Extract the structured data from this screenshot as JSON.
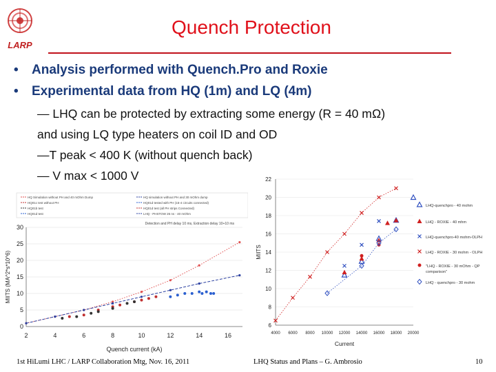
{
  "header": {
    "title": "Quench Protection",
    "logo_text": "LARP"
  },
  "bullets": [
    "Analysis performed with Quench.Pro and Roxie",
    "Experimental data from HQ (1m) and LQ (4m)"
  ],
  "sub_points": [
    "— LHQ can be protected by extracting some energy (R = 40 mΩ)",
    "and using LQ type heaters on coil ID and OD",
    "—T peak < 400 K (without quench back)",
    "— V max < 1000 V"
  ],
  "footer": {
    "left": "1st HiLumi LHC / LARP Collaboration Mtg, Nov. 16, 2011",
    "center": "LHQ Status and Plans – G. Ambrosio",
    "page": "10"
  },
  "chart_data": [
    {
      "type": "scatter",
      "xlabel": "Quench current (kA)",
      "ylabel": "MIITS (MA^2*s*10^6)",
      "xlim": [
        2,
        17
      ],
      "ylim": [
        0,
        30
      ],
      "xticks": [
        "2",
        "4",
        "6",
        "8",
        "10",
        "12",
        "14",
        "16"
      ],
      "yticks": [
        "0",
        "5",
        "10",
        "15",
        "20",
        "25",
        "30"
      ],
      "annotation": "Detection and PH delay 10 ms, Extraction delay 10+10 ms",
      "legend": [
        "HQ Simulation without PH and 40 mOhm Dump",
        "HQ01c test without PH",
        "HQ01b test",
        "HQ01d test",
        "HQ simulation without PH and 30 mOhm dump",
        "HQ01d tested with PH (15-4 circuits connected)",
        "HQ01d test (all PH strips Connected)",
        "LHQ - PHSTOW 26 ns - 40 mOhm"
      ],
      "series": [
        {
          "name": "HQ Simulation without PH and 40 mOhm Dump",
          "style": "dotted-line",
          "color": "#e05050",
          "x": [
            2,
            4,
            6,
            8,
            10,
            12,
            14,
            16.8
          ],
          "y": [
            1,
            3,
            5,
            7.5,
            10.5,
            14,
            18.5,
            25.5
          ]
        },
        {
          "name": "HQ simulation without PH and 30 mOhm dump",
          "style": "dashed-line",
          "color": "#2a3fa0",
          "x": [
            2,
            4,
            6,
            8,
            10,
            12,
            14,
            16.8
          ],
          "y": [
            1,
            3,
            5,
            7,
            9,
            11,
            13,
            15.5
          ]
        },
        {
          "name": "HQ01c test without PH",
          "style": "points",
          "color": "#c03030",
          "x": [
            5,
            6,
            7,
            8,
            8.5,
            9.5,
            10,
            10.5,
            11
          ],
          "y": [
            3,
            3.5,
            5,
            6,
            6.5,
            7.5,
            8,
            8.5,
            9
          ]
        },
        {
          "name": "HQ01b test",
          "style": "points",
          "color": "#333333",
          "x": [
            4.5,
            5.5,
            6.5,
            7,
            8,
            9,
            9.5
          ],
          "y": [
            2.5,
            3,
            4,
            4.5,
            5.5,
            7,
            7.5
          ]
        },
        {
          "name": "HQ01d test",
          "style": "points",
          "color": "#2a5fd0",
          "x": [
            12,
            12.5,
            13,
            13.5,
            14,
            14.2,
            14.5,
            14.8,
            15
          ],
          "y": [
            9,
            9.5,
            10,
            10,
            10.5,
            10,
            10.5,
            10,
            10
          ]
        }
      ]
    },
    {
      "type": "scatter",
      "xlabel": "Current",
      "ylabel": "MIITS",
      "xlim": [
        4000,
        20000
      ],
      "ylim": [
        6,
        22
      ],
      "xticks": [
        "4000",
        "6000",
        "8000",
        "10000",
        "12000",
        "14000",
        "16000",
        "18000",
        "20000"
      ],
      "yticks": [
        "6",
        "8",
        "10",
        "12",
        "14",
        "16",
        "18",
        "20",
        "22"
      ],
      "legend": [
        "LHQ-quenchpro - 40 mohm",
        "LHQ - ROXIE - 40 mhm",
        "LHQ-quenchpro-40 mohm-OLPH",
        "LHQ - ROXIE - 30 mohm - OLPH",
        "\"LHQ - ROXIE - 30 mOhm - QP comparison\"",
        "LHQ - quenchpro - 30 mohm"
      ],
      "series": [
        {
          "name": "LHQ-quenchpro - 40 mohm",
          "marker": "triangle-open",
          "color": "#3050c0",
          "x": [
            12000,
            14000,
            16000,
            18000,
            20000
          ],
          "y": [
            11.5,
            13,
            15.5,
            17.5,
            20
          ]
        },
        {
          "name": "LHQ - ROXIE - 40 mhm",
          "marker": "triangle-filled",
          "color": "#d02020",
          "x": [
            12000,
            14000,
            16000,
            17000,
            18000
          ],
          "y": [
            11.8,
            13.3,
            15.3,
            17.2,
            17.5
          ]
        },
        {
          "name": "LHQ-quenchpro-40 mohm-OLPH",
          "marker": "x",
          "color": "#3050c0",
          "x": [
            12000,
            14000,
            16000
          ],
          "y": [
            12.5,
            14.8,
            17.4
          ]
        },
        {
          "name": "LHQ - ROXIE - 30 mohm - OLPH",
          "marker": "x",
          "color": "#d02020",
          "line": "dotted",
          "x": [
            4000,
            6000,
            8000,
            10000,
            12000,
            14000,
            16000,
            18000
          ],
          "y": [
            6.5,
            9,
            11.3,
            14,
            16,
            18.3,
            20,
            21
          ]
        },
        {
          "name": "\"LHQ - ROXIE - 30 mOhm - QP comparison\"",
          "marker": "dot",
          "color": "#d02020",
          "x": [
            14000,
            16000
          ],
          "y": [
            13.6,
            14.8
          ]
        },
        {
          "name": "LHQ - quenchpro - 30 mohm",
          "marker": "diamond-open",
          "color": "#3050c0",
          "line": "dotted",
          "x": [
            10000,
            14000,
            16000,
            18000
          ],
          "y": [
            9.5,
            12.5,
            15,
            16.5
          ]
        }
      ]
    }
  ]
}
